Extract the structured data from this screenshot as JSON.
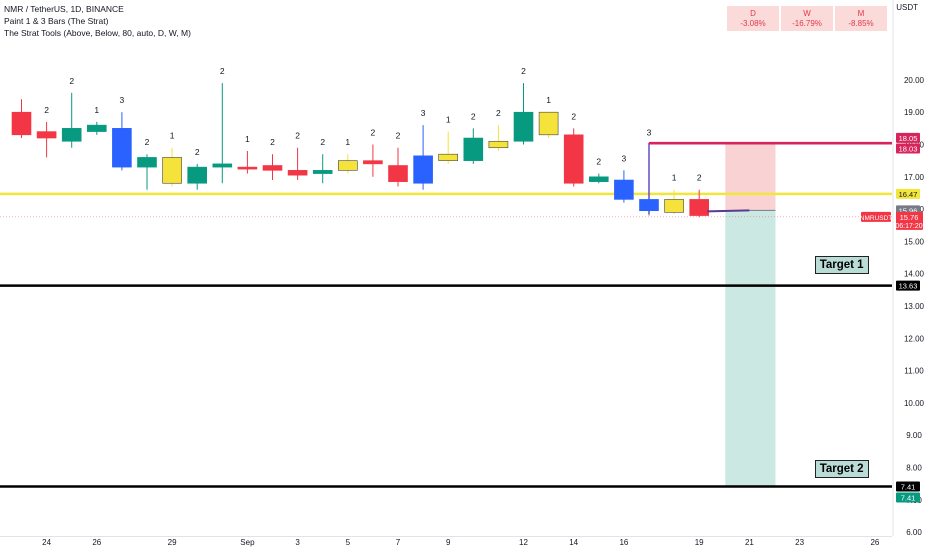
{
  "legend": {
    "line1": "NMR / TetherUS, 1D, BINANCE",
    "line2": "Paint 1 & 3 Bars (The Strat)",
    "line3": "The Strat Tools (Above, Below, 80, auto, D, W, M)"
  },
  "timeframe_changes": [
    {
      "tf": "D",
      "value": "-3.08%"
    },
    {
      "tf": "W",
      "value": "-16.79%"
    },
    {
      "tf": "M",
      "value": "-8.85%"
    }
  ],
  "axis_unit": "USDT",
  "colors": {
    "green": "#089981",
    "red": "#f23645",
    "yellow": "#f5e33c",
    "blue": "#2962ff",
    "crimson": "#d7245c",
    "level_yellow": "#f3e63a",
    "stop_zone": "#f9d3d3",
    "target_zone": "#cbe8e2"
  },
  "chart_data": {
    "type": "candlestick",
    "ylim": [
      5.5,
      21.5
    ],
    "y_ticks": [
      "6.00",
      "7.00",
      "8.00",
      "9.00",
      "10.00",
      "11.00",
      "12.00",
      "13.00",
      "14.00",
      "15.00",
      "16.00",
      "17.00",
      "18.00",
      "19.00",
      "20.00"
    ],
    "x_ticks": [
      {
        "label": "24",
        "i": 1
      },
      {
        "label": "26",
        "i": 3
      },
      {
        "label": "29",
        "i": 6
      },
      {
        "label": "Sep",
        "i": 9
      },
      {
        "label": "3",
        "i": 11
      },
      {
        "label": "5",
        "i": 13
      },
      {
        "label": "7",
        "i": 15
      },
      {
        "label": "9",
        "i": 17
      },
      {
        "label": "12",
        "i": 20
      },
      {
        "label": "14",
        "i": 22
      },
      {
        "label": "16",
        "i": 24
      },
      {
        "label": "19",
        "i": 27
      },
      {
        "label": "21",
        "i": 29
      },
      {
        "label": "23",
        "i": 31
      },
      {
        "label": "26",
        "i": 34
      }
    ],
    "candles": [
      {
        "o": 19.0,
        "h": 19.4,
        "l": 18.2,
        "c": 18.3,
        "col": "red",
        "lab": ""
      },
      {
        "o": 18.4,
        "h": 18.7,
        "l": 17.6,
        "c": 18.2,
        "col": "red",
        "lab": "2"
      },
      {
        "o": 18.1,
        "h": 19.6,
        "l": 17.9,
        "c": 18.5,
        "col": "green",
        "lab": "2"
      },
      {
        "o": 18.4,
        "h": 18.7,
        "l": 18.3,
        "c": 18.6,
        "col": "green",
        "lab": "1"
      },
      {
        "o": 18.5,
        "h": 19.0,
        "l": 17.2,
        "c": 17.3,
        "col": "blue",
        "lab": "3"
      },
      {
        "o": 17.3,
        "h": 17.7,
        "l": 16.6,
        "c": 17.6,
        "col": "green",
        "lab": "2"
      },
      {
        "o": 17.6,
        "h": 17.9,
        "l": 16.7,
        "c": 16.8,
        "col": "yellow",
        "lab": "1"
      },
      {
        "o": 16.8,
        "h": 17.4,
        "l": 16.6,
        "c": 17.3,
        "col": "green",
        "lab": "2"
      },
      {
        "o": 17.3,
        "h": 19.9,
        "l": 16.8,
        "c": 17.4,
        "col": "green",
        "lab": "2"
      },
      {
        "o": 17.3,
        "h": 17.8,
        "l": 17.1,
        "c": 17.3,
        "col": "red",
        "lab": "1"
      },
      {
        "o": 17.35,
        "h": 17.7,
        "l": 16.9,
        "c": 17.2,
        "col": "red",
        "lab": "2"
      },
      {
        "o": 17.2,
        "h": 17.9,
        "l": 16.9,
        "c": 17.05,
        "col": "red",
        "lab": "2"
      },
      {
        "o": 17.1,
        "h": 17.7,
        "l": 16.8,
        "c": 17.2,
        "col": "green",
        "lab": "2"
      },
      {
        "o": 17.2,
        "h": 17.7,
        "l": 17.1,
        "c": 17.5,
        "col": "yellow",
        "lab": "1"
      },
      {
        "o": 17.5,
        "h": 18.0,
        "l": 17.0,
        "c": 17.4,
        "col": "red",
        "lab": "2"
      },
      {
        "o": 17.35,
        "h": 17.9,
        "l": 16.7,
        "c": 16.85,
        "col": "red",
        "lab": "2"
      },
      {
        "o": 16.8,
        "h": 18.6,
        "l": 16.6,
        "c": 17.65,
        "col": "blue",
        "lab": "3"
      },
      {
        "o": 17.5,
        "h": 18.4,
        "l": 17.4,
        "c": 17.7,
        "col": "yellow",
        "lab": "1"
      },
      {
        "o": 17.5,
        "h": 18.5,
        "l": 17.4,
        "c": 18.2,
        "col": "green",
        "lab": "2"
      },
      {
        "o": 17.9,
        "h": 18.6,
        "l": 17.8,
        "c": 18.1,
        "col": "yellow",
        "lab": "2"
      },
      {
        "o": 18.1,
        "h": 19.9,
        "l": 18.0,
        "c": 19.0,
        "col": "green",
        "lab": "2"
      },
      {
        "o": 19.0,
        "h": 19.0,
        "l": 18.2,
        "c": 18.3,
        "col": "yellow",
        "lab": "1"
      },
      {
        "o": 18.3,
        "h": 18.5,
        "l": 16.7,
        "c": 16.8,
        "col": "red",
        "lab": "2"
      },
      {
        "o": 16.85,
        "h": 17.1,
        "l": 16.8,
        "c": 17.0,
        "col": "green",
        "lab": "2"
      },
      {
        "o": 16.9,
        "h": 17.2,
        "l": 16.2,
        "c": 16.3,
        "col": "blue",
        "lab": "3"
      },
      {
        "o": 16.3,
        "h": 18.0,
        "l": 15.8,
        "c": 15.95,
        "col": "blue",
        "lab": "3"
      },
      {
        "o": 15.9,
        "h": 16.6,
        "l": 15.85,
        "c": 16.3,
        "col": "yellow",
        "lab": "1"
      },
      {
        "o": 16.3,
        "h": 16.6,
        "l": 15.75,
        "c": 15.8,
        "col": "red",
        "lab": "2"
      }
    ],
    "levels": [
      {
        "price": 18.05,
        "label": "18.05",
        "color": "crimson",
        "from_i": 25
      },
      {
        "price": 18.03,
        "label": "18.03",
        "color": "crimson",
        "from_i": 25
      },
      {
        "price": 16.47,
        "label": "16.47",
        "color": "level_yellow",
        "from_i": 0
      },
      {
        "price": 13.63,
        "label": "13.63",
        "color": "black",
        "from_i": 0
      },
      {
        "price": 7.41,
        "label": "7.41",
        "color": "black",
        "from_i": 0
      }
    ],
    "position": {
      "from_i": 28,
      "to_i": 30,
      "entry": 15.96,
      "stop": 18.05,
      "target": 7.41
    },
    "price_tags": [
      {
        "price": 15.96,
        "label": "15.96",
        "bg": "#787b86"
      },
      {
        "price": 15.76,
        "label": "15.76",
        "label2": "06:17:20",
        "bg": "#f23645",
        "name": "NMRUSDT"
      },
      {
        "price": 7.41,
        "label": "7.41",
        "bg": "#089981",
        "offset": 1
      }
    ],
    "annotations": [
      {
        "text": "Target 1",
        "price": 14.3,
        "i": 32
      },
      {
        "text": "Target 2",
        "price": 8.0,
        "i": 32
      }
    ]
  }
}
